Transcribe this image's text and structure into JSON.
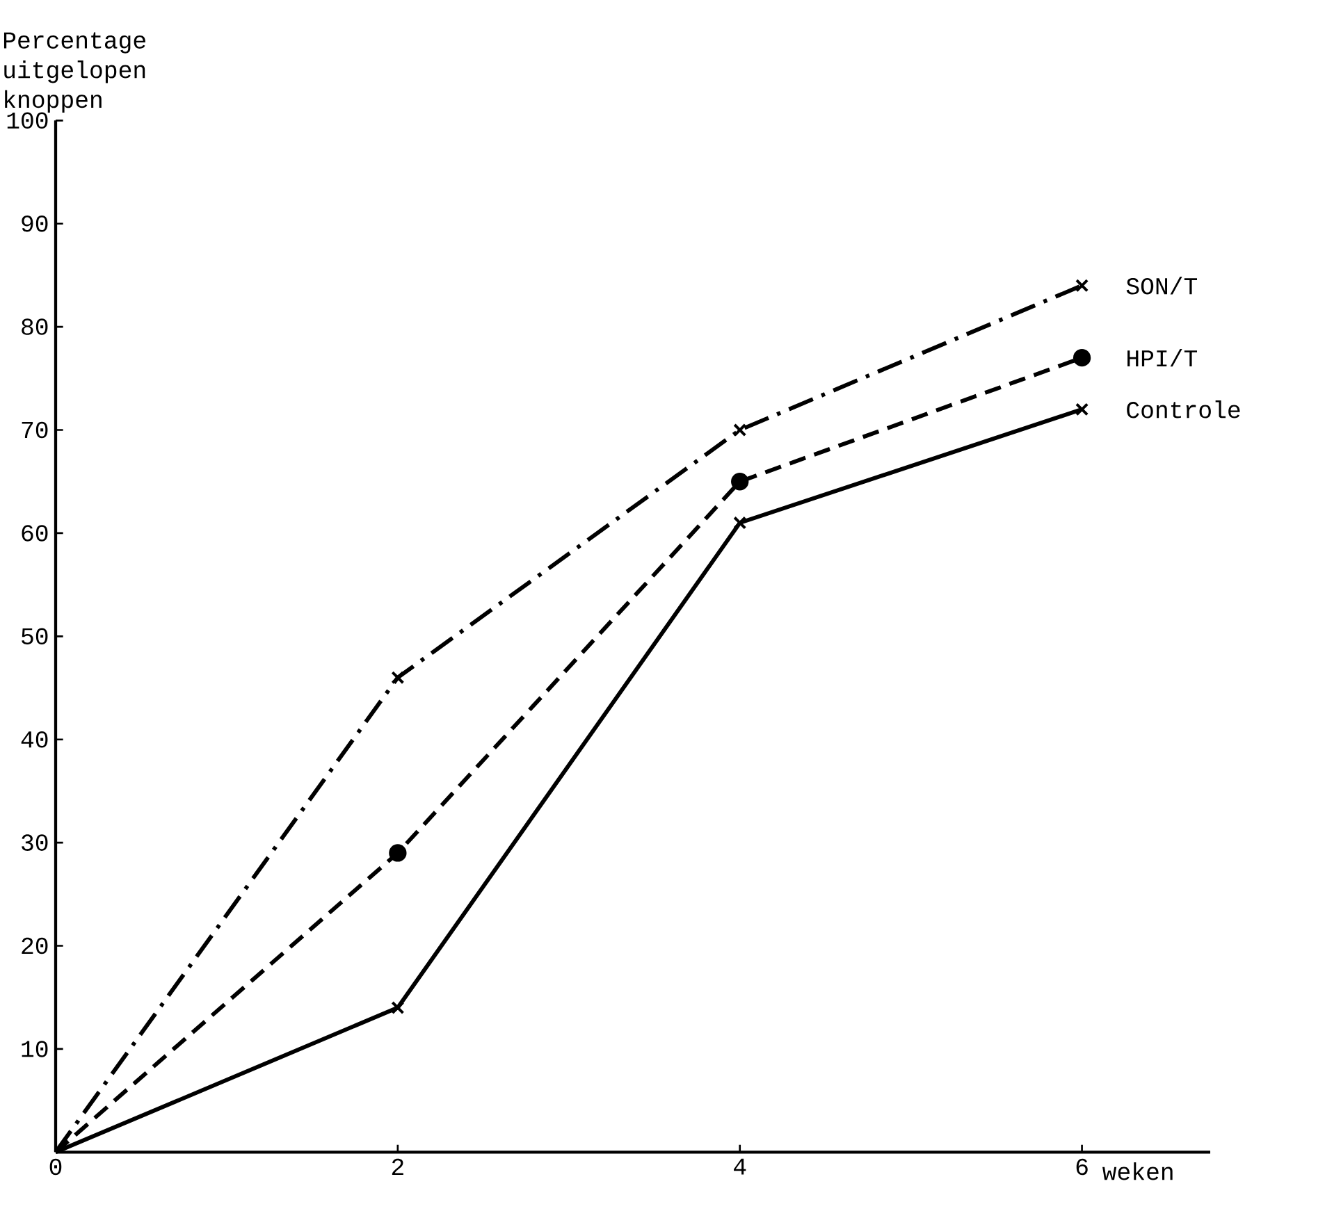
{
  "chart_data": {
    "type": "line",
    "xlabel": "weken",
    "ylabel": "Percentage uitgelopen knoppen",
    "x": [
      0,
      2,
      4,
      6
    ],
    "xlim": [
      0,
      6.75
    ],
    "xticks": [
      0,
      2,
      4,
      6
    ],
    "ylim": [
      0,
      100
    ],
    "yticks": [
      10,
      20,
      30,
      40,
      50,
      60,
      70,
      80,
      90,
      100
    ],
    "grid": false,
    "series": [
      {
        "name": "SON/T",
        "color": "#000000",
        "values": [
          0,
          46,
          70,
          84
        ],
        "marker": "cross",
        "line_style": "dashdot"
      },
      {
        "name": "HPI/T",
        "color": "#000000",
        "values": [
          0,
          29,
          65,
          77
        ],
        "marker": "circle",
        "line_style": "dashed"
      },
      {
        "name": "Controle",
        "color": "#000000",
        "values": [
          0,
          14,
          61,
          72
        ],
        "marker": "cross",
        "line_style": "solid"
      }
    ]
  }
}
